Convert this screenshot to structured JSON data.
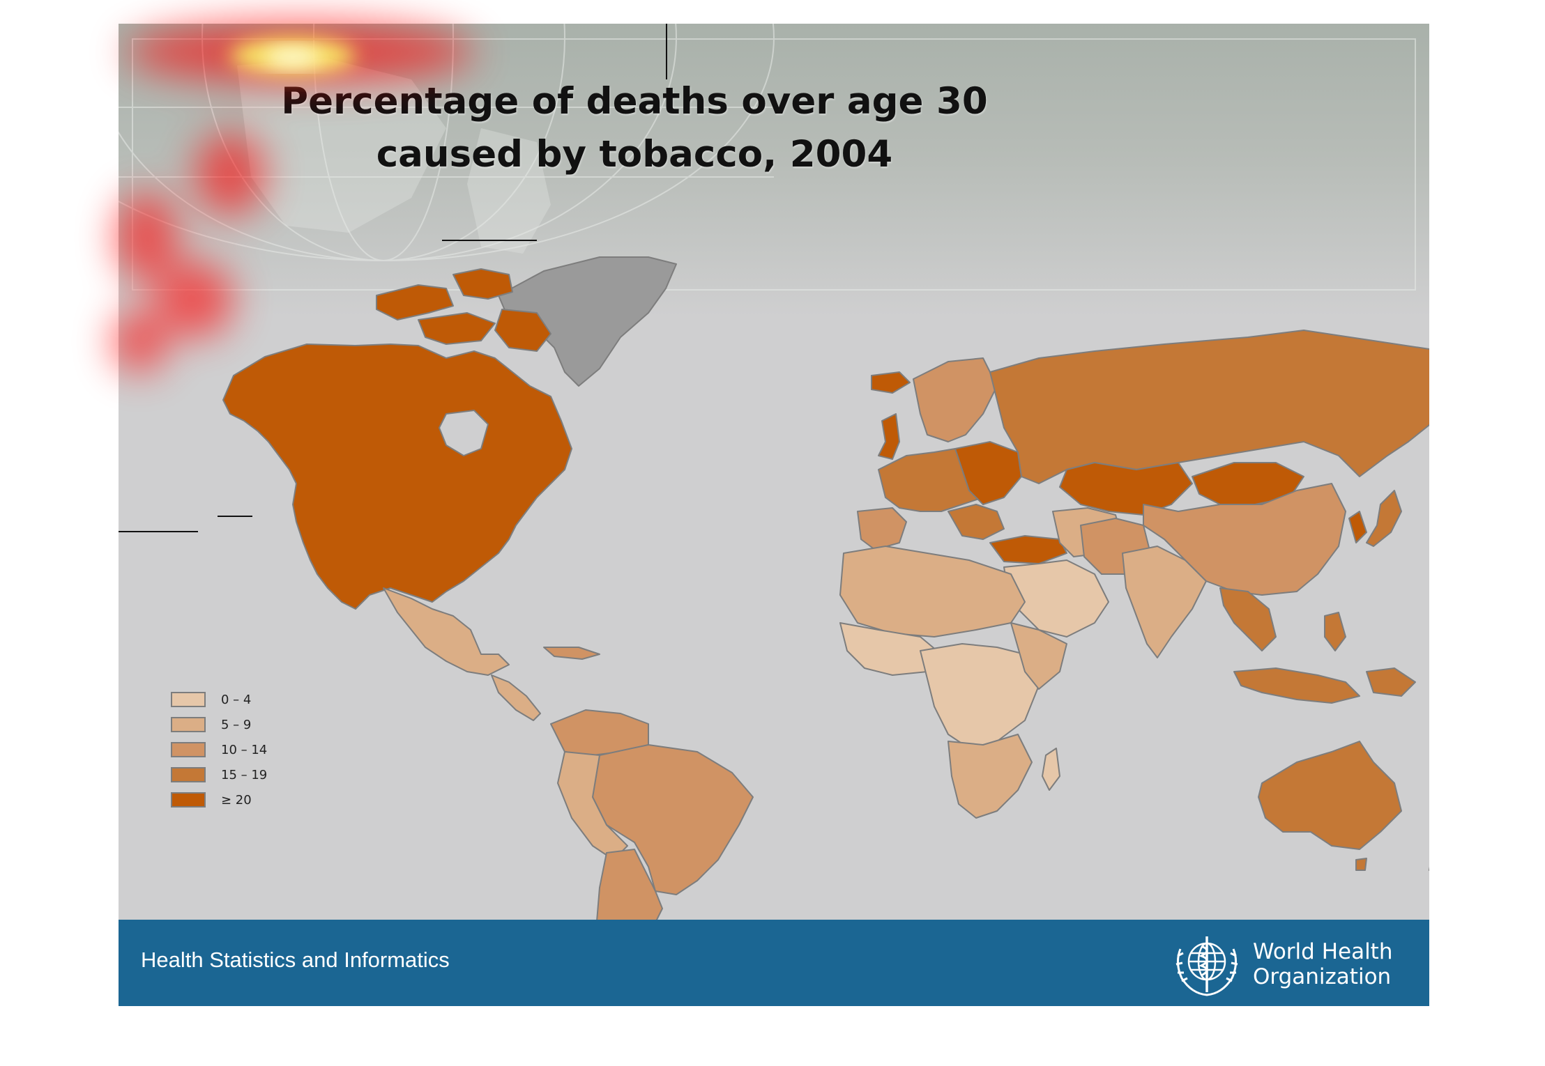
{
  "slide": {
    "title": "Percentage of deaths over age 30 caused by tobacco, 2004",
    "background_color": "#cfcfd0",
    "header_band_color": "#a9b1aa"
  },
  "map": {
    "type": "choropleth",
    "subject": "Percentage of deaths over age 30 caused by tobacco, 2004",
    "no_data_color": "#9a9a9a",
    "land_border_color": "#7d7d7d"
  },
  "legend": {
    "items": [
      {
        "label": "0 – 4",
        "color": "#e6c7a9"
      },
      {
        "label": "5 – 9",
        "color": "#dbae86"
      },
      {
        "label": "10 – 14",
        "color": "#d09364"
      },
      {
        "label": "15 – 19",
        "color": "#c47836"
      },
      {
        "label": "≥ 20",
        "color": "#bf5a06"
      }
    ]
  },
  "footer": {
    "text": "Health Statistics and Informatics",
    "color": "#1b6693",
    "logo_icon": "who-emblem-icon",
    "org_name_line1": "World Health",
    "org_name_line2": "Organization"
  },
  "overlay": {
    "heatmap_colors": [
      "#ff0000",
      "#ffff66"
    ]
  }
}
